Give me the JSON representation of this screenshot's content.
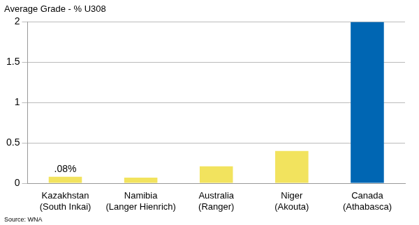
{
  "chart_data": {
    "type": "bar",
    "ylabel": "Average Grade - % U308",
    "source": "Source: WNA",
    "categories": [
      [
        "Kazakhstan",
        "(South Inkai)"
      ],
      [
        "Namibia",
        "(Langer Hienrich)"
      ],
      [
        "Australia",
        "(Ranger)"
      ],
      [
        "Niger",
        "(Akouta)"
      ],
      [
        "Canada",
        "(Athabasca)"
      ]
    ],
    "values": [
      0.08,
      0.07,
      0.21,
      0.4,
      2
    ],
    "value_labels": [
      ".08%",
      null,
      null,
      null,
      null
    ],
    "data_labels": true,
    "colors": [
      "#f2e35e",
      "#f2e35e",
      "#f2e35e",
      "#f2e35e",
      "#0066b3"
    ],
    "ylim": [
      0,
      2
    ],
    "yticks": [
      0,
      0.5,
      1,
      1.5,
      2
    ],
    "grid": true
  }
}
